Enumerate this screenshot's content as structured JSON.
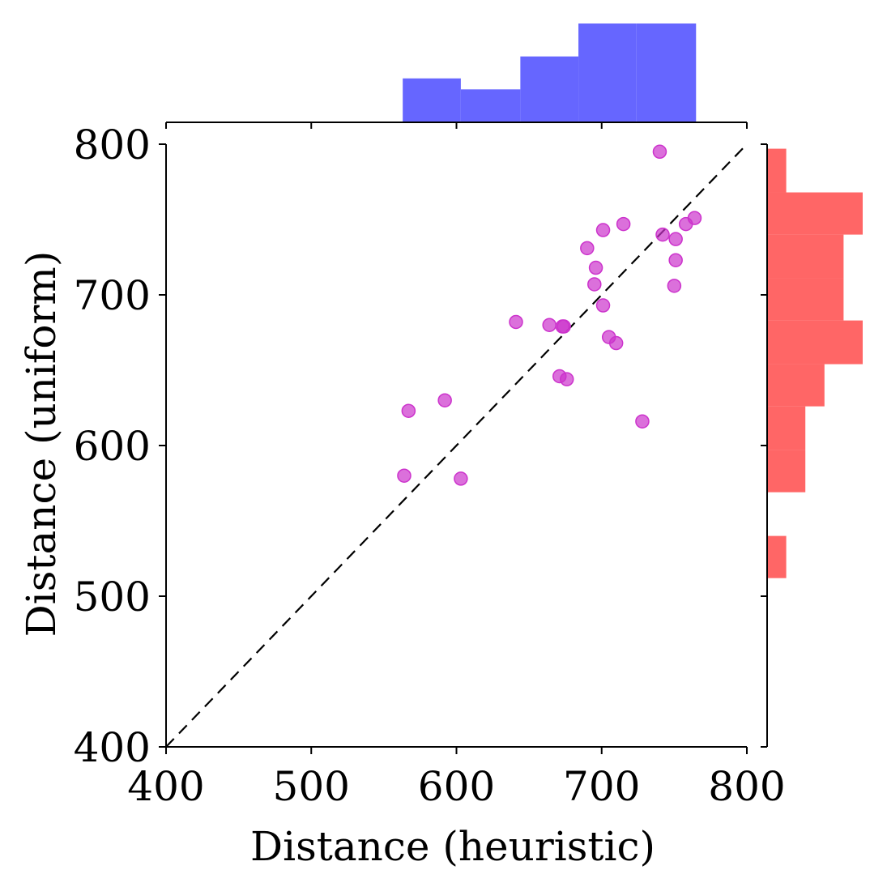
{
  "chart_data": {
    "type": "scatter",
    "title": "",
    "xlabel": "Distance (heuristic)",
    "ylabel": "Distance (uniform)",
    "xlim": [
      400,
      800
    ],
    "ylim": [
      400,
      800
    ],
    "xticks": [
      400,
      500,
      600,
      700,
      800
    ],
    "yticks": [
      400,
      500,
      600,
      700,
      800
    ],
    "grid": false,
    "reference_line": {
      "from": [
        400,
        400
      ],
      "to": [
        800,
        800
      ],
      "style": "dashed",
      "color": "#000000"
    },
    "colors": {
      "points": "#cc33cc",
      "x_hist": "#6666ff",
      "y_hist": "#ff6666"
    },
    "series": [
      {
        "points": [
          [
            740,
            795
          ],
          [
            764,
            751
          ],
          [
            715,
            747
          ],
          [
            758,
            747
          ],
          [
            701,
            743
          ],
          [
            742,
            740
          ],
          [
            751,
            737
          ],
          [
            690,
            731
          ],
          [
            751,
            723
          ],
          [
            696,
            718
          ],
          [
            695,
            707
          ],
          [
            750,
            706
          ],
          [
            701,
            693
          ],
          [
            641,
            682
          ],
          [
            664,
            680
          ],
          [
            673,
            679
          ],
          [
            674,
            679
          ],
          [
            705,
            672
          ],
          [
            710,
            668
          ],
          [
            671,
            646
          ],
          [
            676,
            644
          ],
          [
            592,
            630
          ],
          [
            567,
            623
          ],
          [
            728,
            616
          ],
          [
            564,
            580
          ],
          [
            603,
            578
          ]
        ]
      }
    ],
    "x_histogram": {
      "bins": [
        {
          "start": 563,
          "end": 603,
          "count": 4
        },
        {
          "start": 603,
          "end": 644,
          "count": 3
        },
        {
          "start": 644,
          "end": 684,
          "count": 6
        },
        {
          "start": 684,
          "end": 724,
          "count": 9
        },
        {
          "start": 724,
          "end": 765,
          "count": 9
        }
      ]
    },
    "y_histogram": {
      "bins": [
        {
          "start": 512,
          "end": 540,
          "count": 1
        },
        {
          "start": 540,
          "end": 569,
          "count": 0
        },
        {
          "start": 569,
          "end": 597,
          "count": 2
        },
        {
          "start": 597,
          "end": 626,
          "count": 2
        },
        {
          "start": 626,
          "end": 654,
          "count": 3
        },
        {
          "start": 654,
          "end": 683,
          "count": 5
        },
        {
          "start": 683,
          "end": 711,
          "count": 4
        },
        {
          "start": 711,
          "end": 740,
          "count": 4
        },
        {
          "start": 740,
          "end": 768,
          "count": 5
        },
        {
          "start": 768,
          "end": 797,
          "count": 1
        }
      ]
    }
  }
}
